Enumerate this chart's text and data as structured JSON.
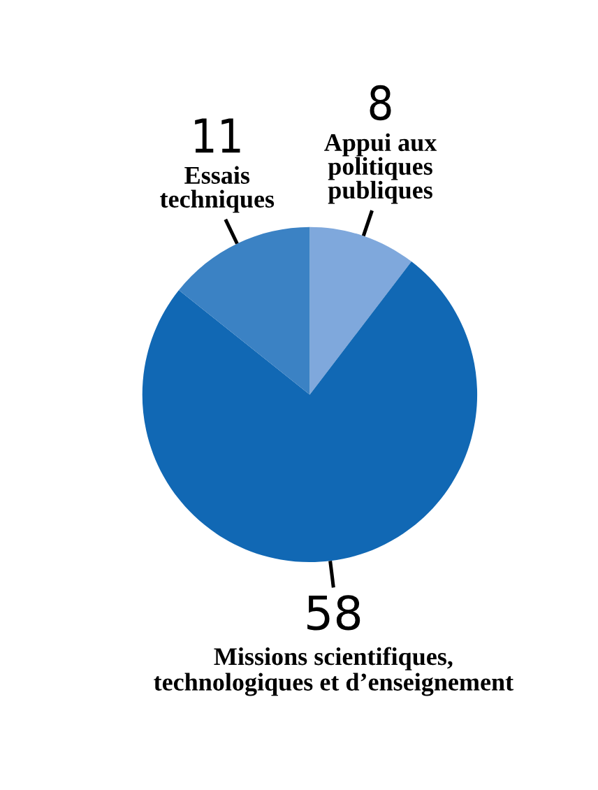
{
  "chart_data": {
    "type": "pie",
    "categories": [
      "Appui aux\npolitiques\npubliques",
      "Missions scientifiques,\ntechnologiques et d’enseignement",
      "Essais\ntechniques"
    ],
    "values": [
      8,
      58,
      11
    ],
    "colors": [
      "#7fa8dc",
      "#1168b4",
      "#3b82c4"
    ],
    "data_labels": true,
    "legend": false
  }
}
